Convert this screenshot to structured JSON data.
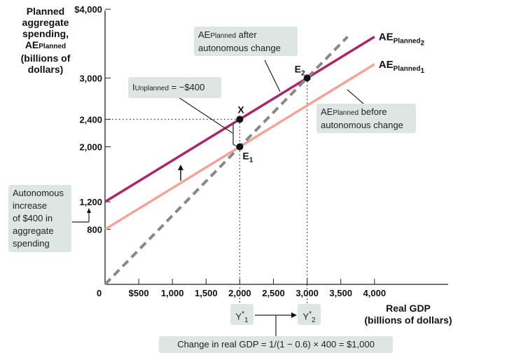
{
  "chart_data": {
    "type": "line",
    "ylabel_lines": [
      "Planned",
      "aggregate",
      "spending,",
      "AE",
      "(billions of",
      "dollars)"
    ],
    "ylabel_sub": "Planned",
    "xlabel_lines": [
      "Real GDP",
      "(billions of dollars)"
    ],
    "xlim": [
      0,
      5100
    ],
    "ylim": [
      0,
      4000
    ],
    "x_ticks": [
      {
        "value": 500,
        "label": "$500"
      },
      {
        "value": 1000,
        "label": "1,000"
      },
      {
        "value": 1500,
        "label": "1,500"
      },
      {
        "value": 2000,
        "label": "2,000"
      },
      {
        "value": 2500,
        "label": "2,500"
      },
      {
        "value": 3000,
        "label": "3,000"
      },
      {
        "value": 3500,
        "label": "3,500"
      },
      {
        "value": 4000,
        "label": "4,000"
      }
    ],
    "y_ticks": [
      {
        "value": 800,
        "label": "800"
      },
      {
        "value": 1200,
        "label": "1,200"
      },
      {
        "value": 2000,
        "label": "2,000"
      },
      {
        "value": 2400,
        "label": "2,400"
      },
      {
        "value": 3000,
        "label": "3,000"
      },
      {
        "value": 4000,
        "label": "$4,000"
      }
    ],
    "origin_label": "0",
    "series": [
      {
        "main": "AE",
        "sub": "Planned",
        "subnum": "2",
        "x": [
          0,
          4000
        ],
        "y": [
          1200,
          3600
        ],
        "color": "#a8286a"
      },
      {
        "main": "AE",
        "sub": "Planned",
        "subnum": "1",
        "x": [
          0,
          4000
        ],
        "y": [
          800,
          3200
        ],
        "color": "#f4a39a"
      },
      {
        "main": "",
        "sub": "",
        "subnum": "",
        "x": [
          0,
          3600
        ],
        "y": [
          0,
          3600
        ],
        "color": "#888888",
        "dash": true
      }
    ],
    "points": [
      {
        "name": "E",
        "sub": "1",
        "x": 2000,
        "y": 2000
      },
      {
        "name": "E",
        "sub": "2",
        "x": 3000,
        "y": 3000
      },
      {
        "name": "X",
        "sub": "",
        "x": 2000,
        "y": 2400
      }
    ],
    "annotations": {
      "after_change": {
        "pre": "AE",
        "sub": "Planned",
        "post": " after",
        "line2": "autonomous change"
      },
      "before_change": {
        "pre": "AE",
        "sub": "Planned",
        "post": " before",
        "line2": "autonomous change"
      },
      "unplanned": {
        "pre": "I",
        "sub": "Unplanned",
        "post": " = −$400"
      },
      "autonomous": {
        "lines": [
          "Autonomous",
          "increase",
          "of $400 in",
          "aggregate",
          "spending"
        ]
      },
      "y1": {
        "main": "Y",
        "sup": "*",
        "sub": "1"
      },
      "y2": {
        "main": "Y",
        "sup": "*",
        "sub": "2"
      },
      "multiplier": "Change in real GDP = 1/(1 − 0.6) × 400 = $1,000"
    }
  }
}
